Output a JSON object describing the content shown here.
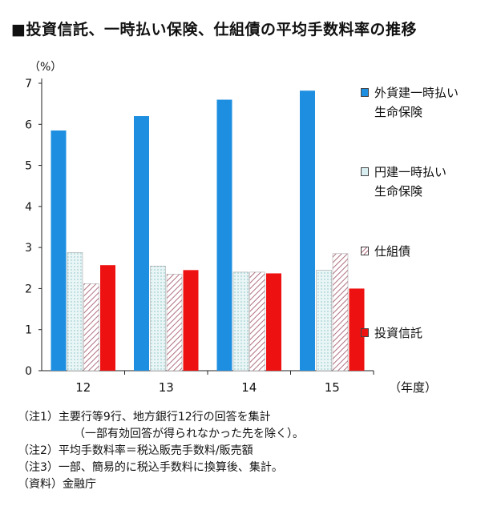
{
  "title": "■投資信託、一時払い保険、仕組債の平均手数料率の推移",
  "chart_data": {
    "type": "bar",
    "title": "■投資信託、一時払い保険、仕組債の平均手数料率の推移",
    "xlabel": "（年度）",
    "ylabel": "（%）",
    "categories": [
      "12",
      "13",
      "14",
      "15"
    ],
    "ylim": [
      0,
      7
    ],
    "yticks": [
      "0",
      "1",
      "2",
      "3",
      "4",
      "5",
      "6",
      "7"
    ],
    "grid": false,
    "legend_position": "right",
    "series": [
      {
        "name": "外貨建一時払い生命保険",
        "label_lines": [
          "外貨建一時払い",
          "生命保険"
        ],
        "color": "#1e8fe0",
        "pattern": "solid",
        "values": [
          5.85,
          6.2,
          6.6,
          6.82
        ]
      },
      {
        "name": "円建一時払い生命保険",
        "label_lines": [
          "円建一時払い",
          "生命保険"
        ],
        "color": "#d8eef0",
        "pattern": "dotted",
        "values": [
          2.88,
          2.55,
          2.4,
          2.45
        ]
      },
      {
        "name": "仕組債",
        "label_lines": [
          "仕組債"
        ],
        "color": "#b07080",
        "pattern": "hatched",
        "values": [
          2.12,
          2.35,
          2.4,
          2.85
        ]
      },
      {
        "name": "投資信託",
        "label_lines": [
          "投資信託"
        ],
        "color": "#ee1111",
        "pattern": "solid",
        "values": [
          2.57,
          2.45,
          2.37,
          2.0
        ]
      }
    ]
  },
  "notes": [
    "（注1）主要行等9行、地方銀行12行の回答を集計",
    "（一部有効回答が得られなかった先を除く）。",
    "（注2）平均手数料率＝税込販売手数料/販売額",
    "（注3）一部、簡易的に税込手数料に換算後、集計。",
    "（資料）金融庁"
  ]
}
